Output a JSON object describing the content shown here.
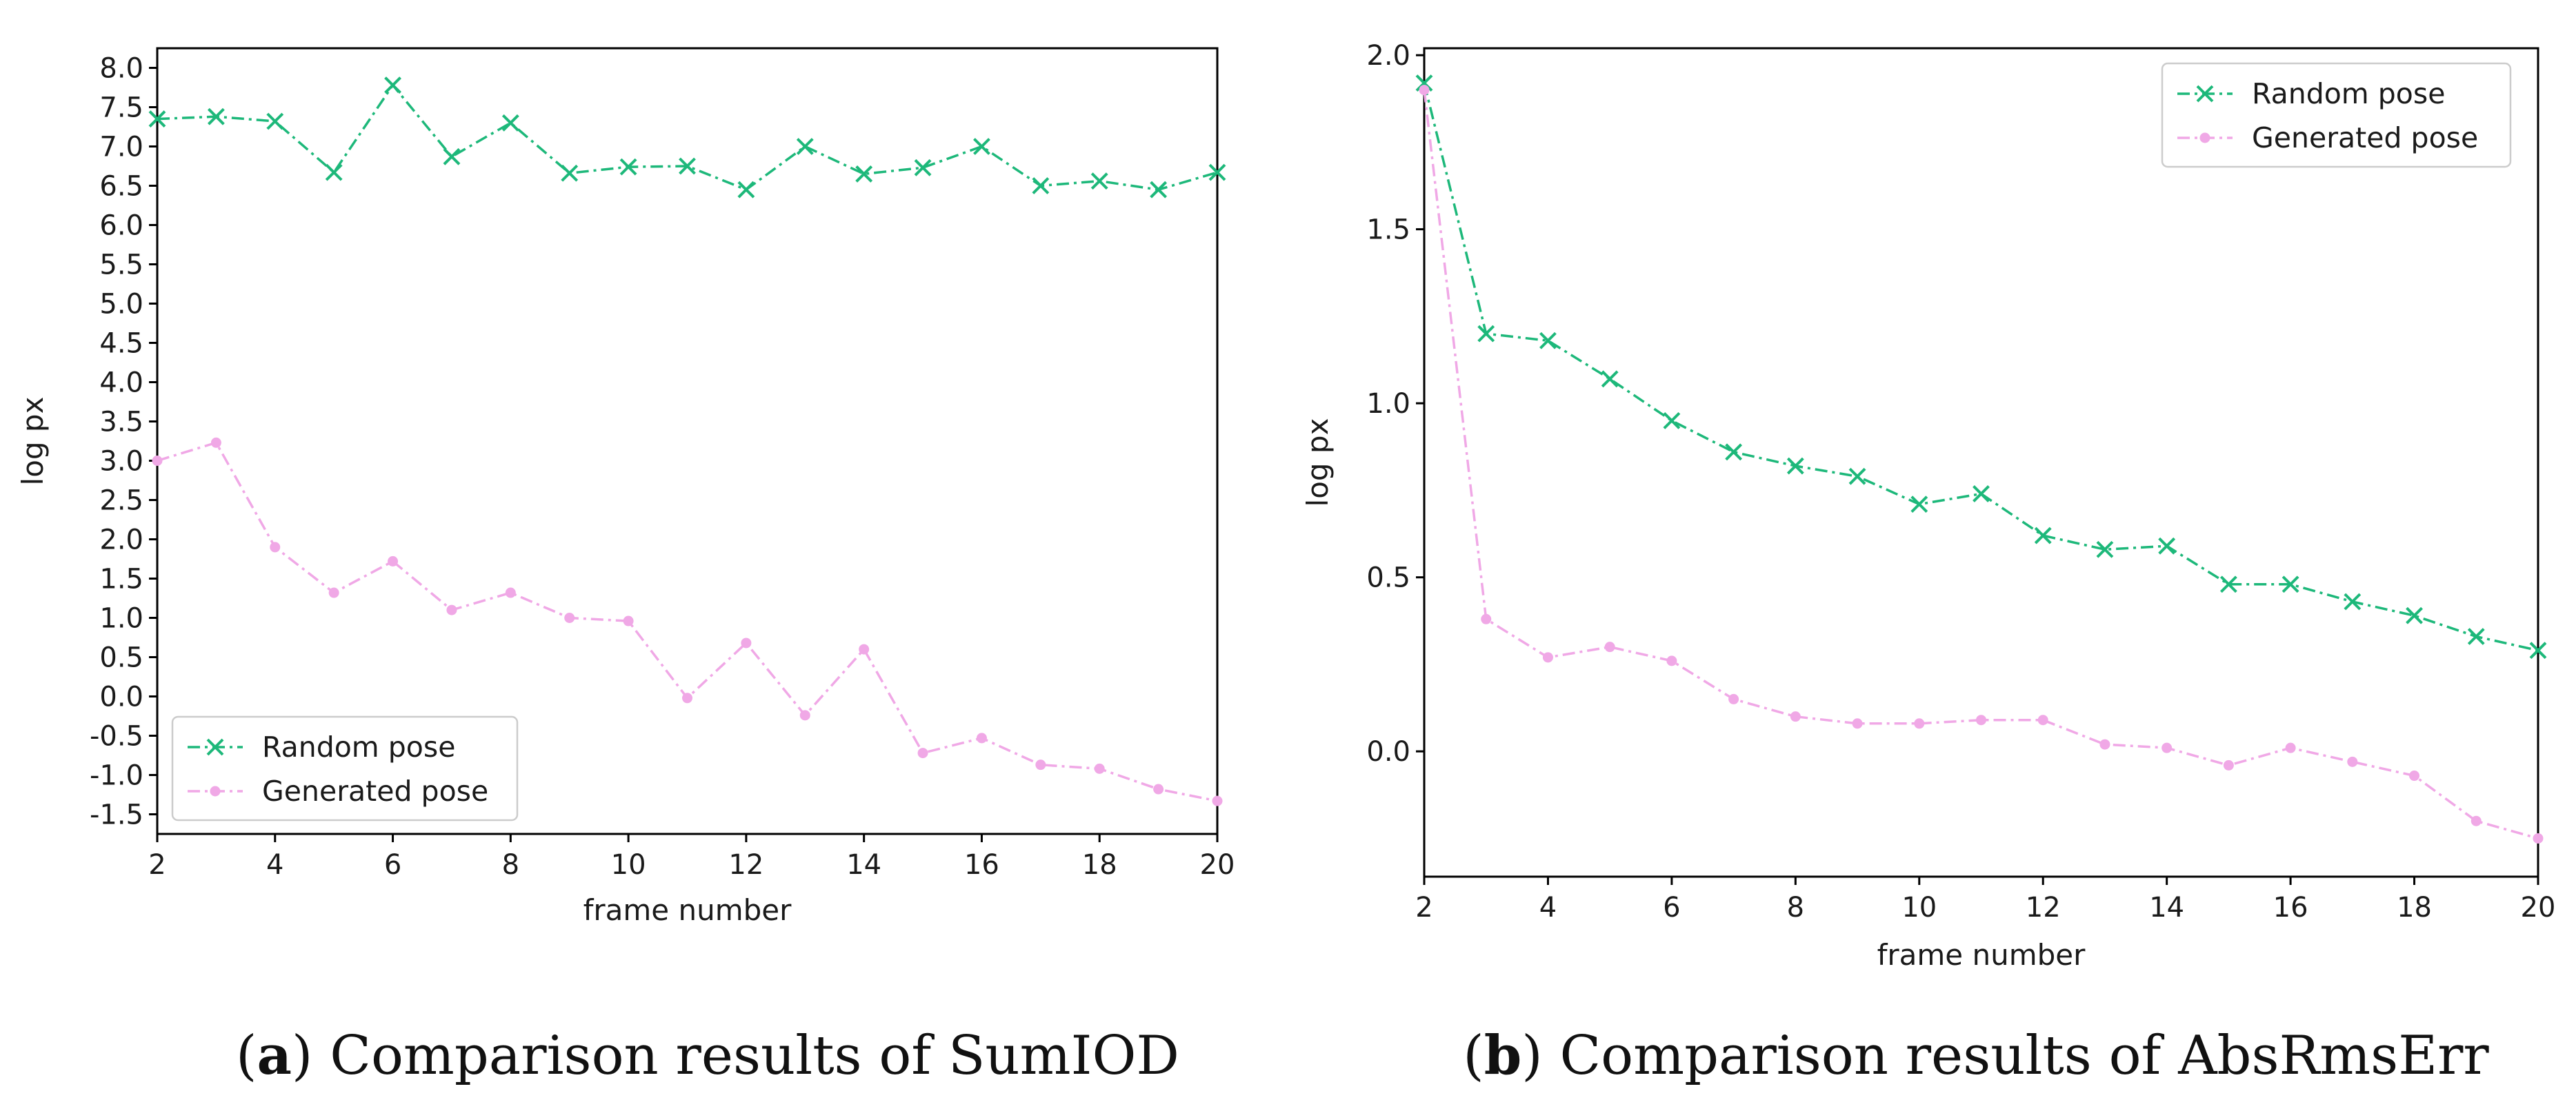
{
  "chart_data": [
    {
      "type": "line",
      "caption": {
        "letter": "a",
        "text": "Comparison results of SumIOD"
      },
      "xlabel": "frame number",
      "ylabel": "log px",
      "xlim": [
        2,
        20
      ],
      "ylim": [
        -1.75,
        8.25
      ],
      "xticks": [
        2,
        4,
        6,
        8,
        10,
        12,
        14,
        16,
        18,
        20
      ],
      "yticks": [
        -1.5,
        -1.0,
        -0.5,
        0.0,
        0.5,
        1.0,
        1.5,
        2.0,
        2.5,
        3.0,
        3.5,
        4.0,
        4.5,
        5.0,
        5.5,
        6.0,
        6.5,
        7.0,
        7.5,
        8.0
      ],
      "ytick_labels": [
        "-1.5",
        "-1.0",
        "-0.5",
        "0.0",
        "0.5",
        "1.0",
        "1.5",
        "2.0",
        "2.5",
        "3.0",
        "3.5",
        "4.0",
        "4.5",
        "5.0",
        "5.5",
        "6.0",
        "6.5",
        "7.0",
        "7.5",
        "8.0"
      ],
      "legend_position": "lower-left",
      "x": [
        2,
        3,
        4,
        5,
        6,
        7,
        8,
        9,
        10,
        11,
        12,
        13,
        14,
        15,
        16,
        17,
        18,
        19,
        20
      ],
      "series": [
        {
          "name": "Random pose",
          "color": "#1db87a",
          "marker": "x",
          "values": [
            7.35,
            7.38,
            7.32,
            6.67,
            7.78,
            6.87,
            7.3,
            6.66,
            6.74,
            6.75,
            6.45,
            7.0,
            6.65,
            6.73,
            7.0,
            6.5,
            6.56,
            6.45,
            6.67
          ]
        },
        {
          "name": "Generated pose",
          "color": "#f0a8e6",
          "marker": "dot",
          "values": [
            3.0,
            3.23,
            1.9,
            1.32,
            1.72,
            1.1,
            1.32,
            1.0,
            0.96,
            -0.02,
            0.68,
            -0.24,
            0.6,
            -0.72,
            -0.53,
            -0.87,
            -0.92,
            -1.18,
            -1.33
          ]
        }
      ]
    },
    {
      "type": "line",
      "caption": {
        "letter": "b",
        "text": "Comparison results of AbsRmsErr"
      },
      "xlabel": "frame number",
      "ylabel": "log px",
      "xlim": [
        2,
        20
      ],
      "ylim": [
        -0.36,
        2.02
      ],
      "xticks": [
        2,
        4,
        6,
        8,
        10,
        12,
        14,
        16,
        18,
        20
      ],
      "yticks": [
        0.0,
        0.5,
        1.0,
        1.5,
        2.0
      ],
      "ytick_labels": [
        "0.0",
        "0.5",
        "1.0",
        "1.5",
        "2.0"
      ],
      "legend_position": "upper-right",
      "x": [
        2,
        3,
        4,
        5,
        6,
        7,
        8,
        9,
        10,
        11,
        12,
        13,
        14,
        15,
        16,
        17,
        18,
        19,
        20
      ],
      "series": [
        {
          "name": "Random pose",
          "color": "#1db87a",
          "marker": "x",
          "values": [
            1.92,
            1.2,
            1.18,
            1.07,
            0.95,
            0.86,
            0.82,
            0.79,
            0.71,
            0.74,
            0.62,
            0.58,
            0.59,
            0.48,
            0.48,
            0.43,
            0.39,
            0.33,
            0.29
          ]
        },
        {
          "name": "Generated pose",
          "color": "#f0a8e6",
          "marker": "dot",
          "values": [
            1.9,
            0.38,
            0.27,
            0.3,
            0.26,
            0.15,
            0.1,
            0.08,
            0.08,
            0.09,
            0.09,
            0.02,
            0.01,
            -0.04,
            0.01,
            -0.03,
            -0.07,
            -0.2,
            -0.25
          ]
        }
      ]
    }
  ]
}
